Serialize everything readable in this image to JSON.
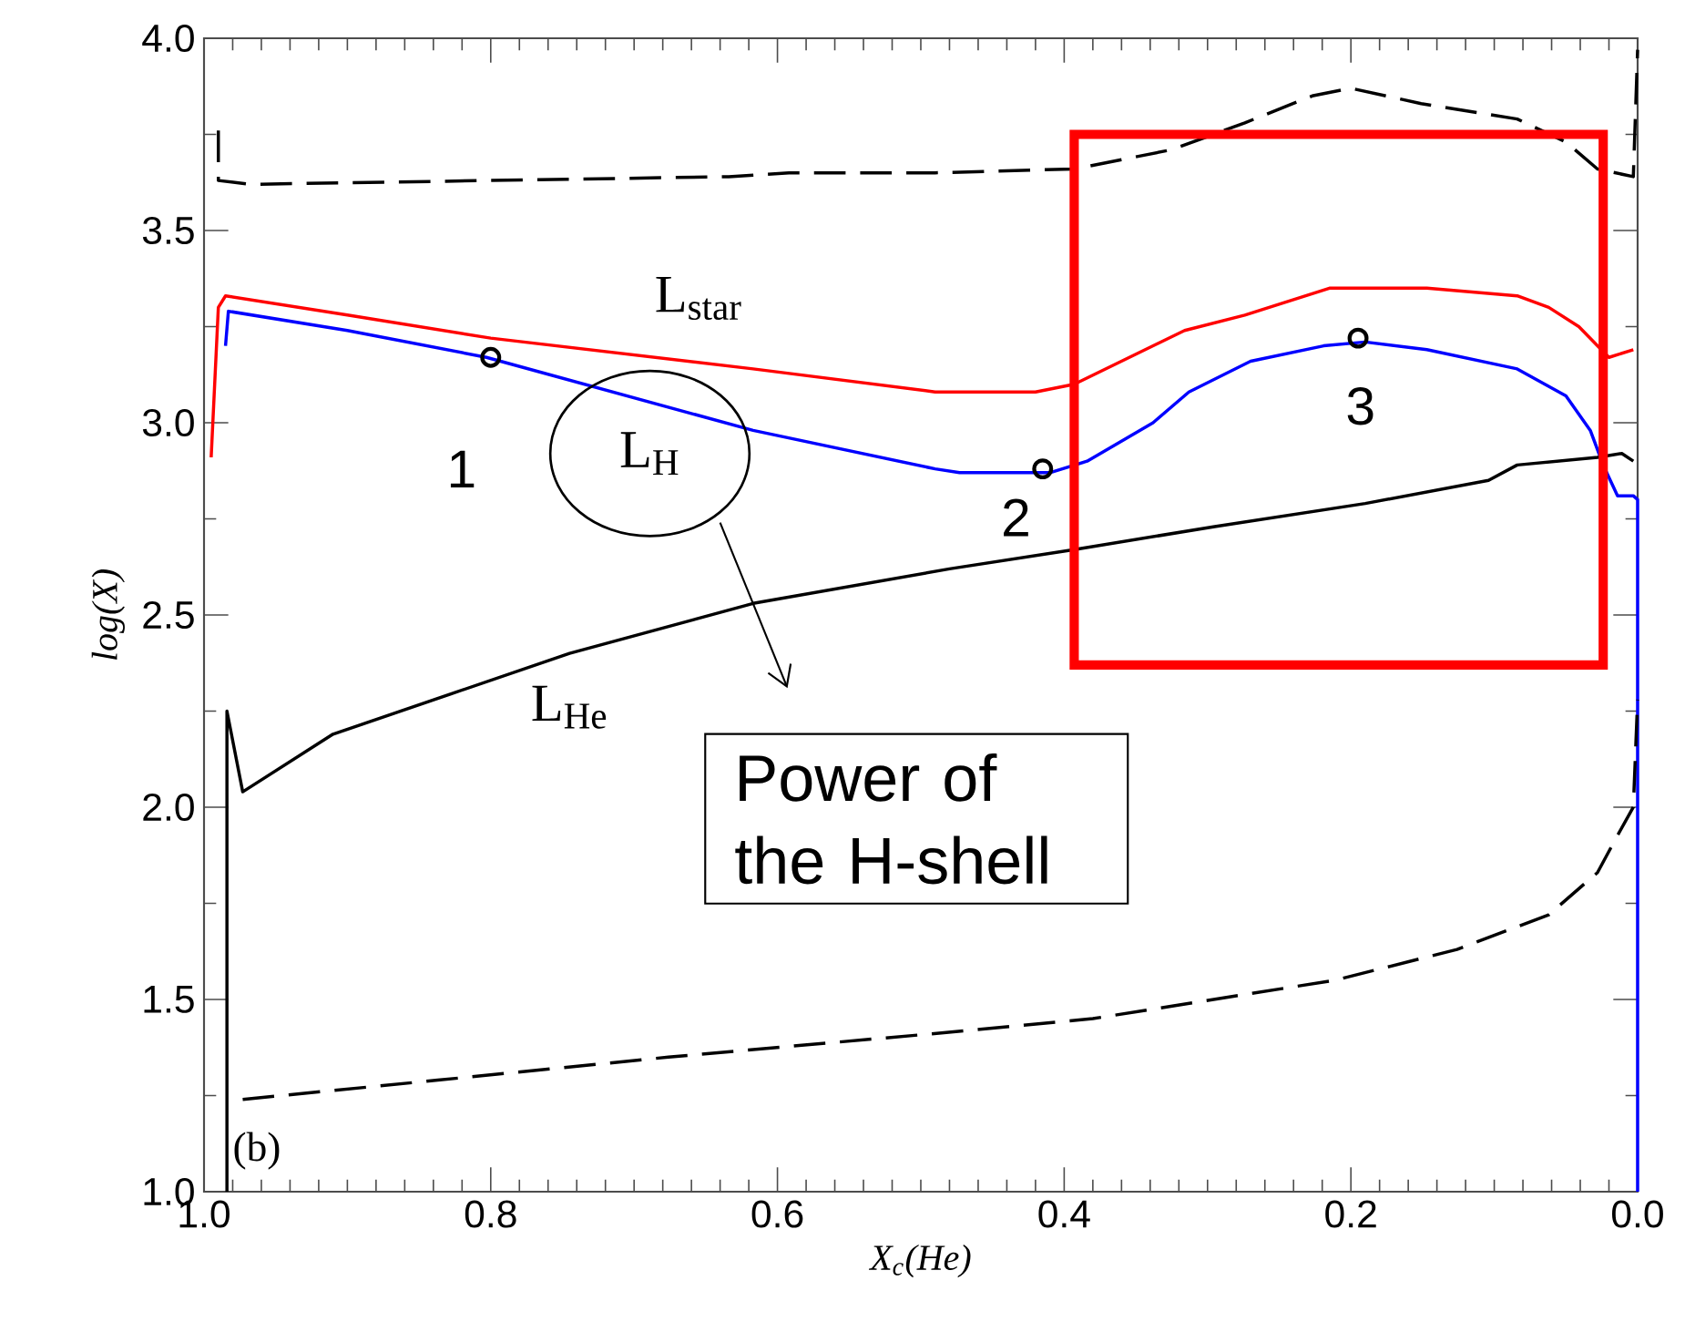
{
  "chart_data": {
    "type": "line",
    "xlabel": "X$_{c}$(He)",
    "ylabel": "log(X)",
    "xlim": [
      1.0,
      0.0
    ],
    "ylim": [
      1.0,
      4.0
    ],
    "xticks": [
      {
        "value": 1.0,
        "label": "1.0"
      },
      0.8,
      0.6,
      0.4,
      0.2,
      {
        "value": 0.0,
        "label": "0.0"
      }
    ],
    "yticks": [
      {
        "value": 1.0,
        "label": "1.0"
      },
      1.5,
      {
        "value": 2.0,
        "label": "2.0"
      },
      2.5,
      {
        "value": 3.0,
        "label": "3.0"
      },
      3.5,
      {
        "value": 4.0,
        "label": "4.0"
      }
    ],
    "series": [
      {
        "name": "L$_{star}$",
        "type": "line",
        "color": "#ff0000",
        "line_style": "solid",
        "x": [
          0.995,
          0.99,
          0.985,
          0.9,
          0.8,
          0.617,
          0.49,
          0.42,
          0.393,
          0.316,
          0.274,
          0.215,
          0.147,
          0.084,
          0.062,
          0.041,
          0.028,
          0.02,
          0.003
        ],
        "values": [
          2.91,
          3.3,
          3.33,
          3.28,
          3.22,
          3.14,
          3.08,
          3.08,
          3.1,
          3.24,
          3.28,
          3.35,
          3.35,
          3.33,
          3.3,
          3.25,
          3.2,
          3.17,
          3.19
        ]
      },
      {
        "type": "line",
        "color": "#0000ff",
        "line_style": "solid",
        "x": [
          0.985,
          0.983,
          0.9,
          0.803,
          0.617,
          0.49,
          0.473,
          0.41,
          0.384,
          0.338,
          0.313,
          0.27,
          0.219,
          0.19,
          0.147,
          0.084,
          0.05,
          0.033,
          0.024,
          0.014,
          0.003,
          0.0,
          0.0
        ],
        "values": [
          3.2,
          3.29,
          3.24,
          3.17,
          2.98,
          2.88,
          2.87,
          2.87,
          2.9,
          3.0,
          3.08,
          3.16,
          3.2,
          3.21,
          3.19,
          3.14,
          3.07,
          2.98,
          2.89,
          2.81,
          2.81,
          2.8,
          1.0
        ]
      },
      {
        "name": "L$_{He}$",
        "type": "line",
        "color": "#000000",
        "line_style": "solid",
        "x": [
          0.984,
          0.984,
          0.973,
          0.91,
          0.745,
          0.617,
          0.48,
          0.393,
          0.295,
          0.19,
          0.104,
          0.084,
          0.028,
          0.011,
          0.003
        ],
        "values": [
          1.0,
          2.25,
          2.04,
          2.19,
          2.4,
          2.53,
          2.62,
          2.67,
          2.73,
          2.79,
          2.85,
          2.89,
          2.91,
          2.92,
          2.9
        ]
      },
      {
        "type": "line",
        "color": "#000000",
        "line_style": "dashed",
        "x": [
          0.99,
          0.99,
          0.968,
          0.634,
          0.592,
          0.49,
          0.393,
          0.325,
          0.274,
          0.227,
          0.2,
          0.151,
          0.084,
          0.05,
          0.028,
          0.003,
          0.0
        ],
        "values": [
          3.76,
          3.63,
          3.62,
          3.64,
          3.65,
          3.65,
          3.66,
          3.71,
          3.78,
          3.85,
          3.87,
          3.83,
          3.79,
          3.73,
          3.66,
          3.64,
          3.97
        ]
      },
      {
        "type": "line",
        "color": "#000000",
        "line_style": "dashed",
        "x": [
          0.973,
          0.837,
          0.676,
          0.494,
          0.38,
          0.211,
          0.126,
          0.062,
          0.028,
          0.015,
          0.003,
          0.0
        ],
        "values": [
          1.24,
          1.29,
          1.35,
          1.41,
          1.45,
          1.55,
          1.63,
          1.72,
          1.83,
          1.92,
          2.0,
          2.28
        ]
      },
      {
        "type": "scatter",
        "color": "#000000",
        "marker": "circle",
        "x": [
          0.8,
          0.415,
          0.195
        ],
        "values": [
          3.17,
          2.88,
          3.22
        ]
      }
    ],
    "annotations": [
      {
        "text": "1",
        "x": 0.8,
        "y": 3.17
      },
      {
        "text": "2",
        "x": 0.415,
        "y": 2.88
      },
      {
        "text": "3",
        "x": 0.195,
        "y": 3.22
      },
      "(b)",
      "L$_{H}$",
      "Power of the H-shell"
    ]
  }
}
